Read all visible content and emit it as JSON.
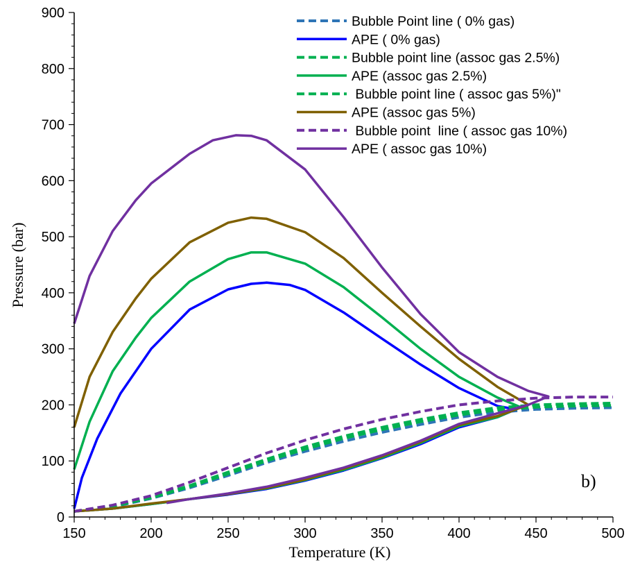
{
  "chart_data": {
    "type": "line",
    "xlabel": "Temperature (K)",
    "ylabel": "Pressure (bar)",
    "xlim": [
      150,
      500
    ],
    "ylim": [
      0,
      900
    ],
    "xticks": [
      150,
      200,
      250,
      300,
      350,
      400,
      450,
      500
    ],
    "yticks": [
      0,
      100,
      200,
      300,
      400,
      500,
      600,
      700,
      800,
      900
    ],
    "grid": false,
    "legend_position": "top-right",
    "annotation": "b)",
    "series": [
      {
        "name": "Bubble Point line ( 0% gas)",
        "style": "dashed",
        "color": "#2E75B6",
        "x": [
          150,
          175,
          200,
          225,
          250,
          275,
          300,
          325,
          350,
          375,
          400,
          425,
          450,
          475,
          500
        ],
        "y": [
          10,
          18,
          33,
          52,
          74,
          97,
          117,
          135,
          151,
          165,
          178,
          187,
          192,
          194,
          195
        ]
      },
      {
        "name": "APE ( 0% gas)",
        "style": "solid",
        "color": "#0000FF",
        "x": [
          150,
          155,
          165,
          180,
          200,
          225,
          250,
          265,
          275,
          290,
          300,
          325,
          350,
          375,
          400,
          425,
          437,
          425,
          400,
          375,
          350,
          325,
          300,
          275,
          250,
          225,
          200,
          175,
          150
        ],
        "y": [
          15,
          70,
          140,
          220,
          300,
          370,
          406,
          416,
          418,
          414,
          405,
          365,
          318,
          272,
          230,
          198,
          192,
          178,
          160,
          130,
          105,
          83,
          65,
          50,
          40,
          32,
          23,
          15,
          10
        ]
      },
      {
        "name": "Bubble point line (assoc gas 2.5%)",
        "style": "dashed",
        "color": "#00B050",
        "x": [
          150,
          175,
          200,
          225,
          250,
          275,
          300,
          325,
          350,
          375,
          400,
          425,
          450,
          475,
          500
        ],
        "y": [
          10,
          19,
          34,
          54,
          77,
          100,
          121,
          140,
          156,
          170,
          182,
          191,
          196,
          198,
          199
        ]
      },
      {
        "name": "APE (assoc gas 2.5%)",
        "style": "solid",
        "color": "#00B050",
        "x": [
          150,
          160,
          175,
          190,
          200,
          225,
          250,
          265,
          275,
          300,
          325,
          350,
          375,
          400,
          425,
          440,
          425,
          400,
          375,
          350,
          325,
          300,
          275,
          250,
          225,
          200,
          175,
          150
        ],
        "y": [
          85,
          170,
          260,
          320,
          355,
          420,
          460,
          472,
          472,
          452,
          410,
          356,
          300,
          250,
          213,
          196,
          178,
          162,
          132,
          106,
          84,
          66,
          51,
          41,
          32,
          23,
          15,
          10
        ]
      },
      {
        "name": " Bubble point line ( assoc gas 5%)\"",
        "style": "dashed",
        "color": "#00B050",
        "x": [
          150,
          175,
          200,
          225,
          250,
          275,
          300,
          325,
          350,
          375,
          400,
          425,
          450,
          475,
          500
        ],
        "y": [
          10,
          20,
          35,
          56,
          80,
          103,
          125,
          144,
          160,
          174,
          186,
          195,
          200,
          202,
          203
        ]
      },
      {
        "name": "APE (assoc gas 5%)",
        "style": "solid",
        "color": "#7F6000",
        "x": [
          150,
          160,
          175,
          190,
          200,
          225,
          250,
          265,
          275,
          300,
          325,
          350,
          375,
          400,
          425,
          445,
          425,
          400,
          375,
          350,
          325,
          300,
          275,
          250,
          225,
          200,
          175,
          150
        ],
        "y": [
          160,
          250,
          330,
          390,
          425,
          490,
          525,
          534,
          532,
          508,
          462,
          400,
          340,
          282,
          232,
          200,
          180,
          164,
          134,
          108,
          86,
          67,
          52,
          41,
          32,
          24,
          15,
          10
        ]
      },
      {
        "name": " Bubble point  line ( assoc gas 10%)",
        "style": "dashed",
        "color": "#7030A0",
        "x": [
          150,
          175,
          200,
          225,
          250,
          275,
          300,
          325,
          350,
          375,
          400,
          425,
          450,
          475,
          500
        ],
        "y": [
          10,
          21,
          38,
          62,
          88,
          114,
          137,
          157,
          174,
          188,
          200,
          207,
          212,
          214,
          214
        ]
      },
      {
        "name": "APE ( assoc gas 10%)",
        "style": "solid",
        "color": "#7030A0",
        "x": [
          150,
          160,
          175,
          190,
          200,
          225,
          240,
          255,
          265,
          275,
          300,
          325,
          350,
          375,
          400,
          425,
          445,
          458,
          445,
          425,
          400,
          375,
          350,
          325,
          300,
          275,
          250,
          225,
          210
        ],
        "y": [
          345,
          430,
          510,
          565,
          595,
          648,
          672,
          681,
          680,
          672,
          620,
          535,
          445,
          362,
          294,
          250,
          225,
          215,
          200,
          185,
          166,
          136,
          110,
          88,
          70,
          54,
          42,
          32,
          25
        ]
      }
    ]
  }
}
